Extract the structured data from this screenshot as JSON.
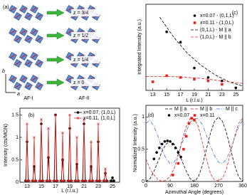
{
  "diagram": {
    "panel_label": "(a)",
    "layers": [
      "z = 3/4",
      "z = 1/2",
      "z = 1/4",
      "z = 0"
    ],
    "columns": [
      "AF-I",
      "AF-II"
    ],
    "axes": [
      "b",
      "a"
    ]
  },
  "chart_data": [
    {
      "type": "line",
      "panel_label": "(b)",
      "xlabel": "L (r.l.u.)",
      "ylabel": "Intensity (cts/MON)",
      "xlim": [
        12,
        26
      ],
      "xticks": [
        13,
        15,
        17,
        19,
        21,
        23,
        25
      ],
      "ylim": [
        0,
        1.65
      ],
      "yticks": [
        0,
        0.5,
        1,
        1.5
      ],
      "series": [
        {
          "name": "x=0.07, (1,0,L)",
          "color": "#000000",
          "style": "solid",
          "marker": "circle",
          "x": [
            12.8,
            13,
            13.2,
            13.8,
            14,
            14.2,
            14.8,
            15,
            15.2,
            15.8,
            16,
            16.2,
            16.8,
            17,
            17.2,
            17.8,
            18,
            18.2,
            18.8,
            19,
            19.2,
            19.8,
            20,
            20.2,
            20.8,
            21,
            21.2,
            21.8,
            22,
            22.2,
            22.8,
            23,
            23.2,
            23.8,
            24,
            24.2,
            24.8,
            25,
            25.2
          ],
          "values": [
            0.03,
            0.9,
            0.03,
            0.03,
            0.35,
            0.03,
            0.03,
            1.3,
            0.03,
            0.03,
            0.55,
            0.03,
            0.03,
            1.5,
            0.03,
            0.03,
            0.5,
            0.03,
            0.03,
            1.2,
            0.03,
            0.03,
            0.4,
            0.03,
            0.03,
            1.3,
            0.03,
            0.03,
            0.35,
            0.03,
            0.03,
            0.9,
            0.03,
            0.03,
            0.2,
            0.03,
            0.03,
            0.1,
            0.03
          ]
        },
        {
          "name": "x=0.11, (1,0,L)",
          "color": "#e8231f",
          "style": "solid",
          "marker": "x",
          "x": [
            12.85,
            13,
            13.15,
            13.85,
            14,
            14.15,
            14.85,
            15,
            15.15,
            15.85,
            16,
            16.15,
            16.85,
            17,
            17.15,
            17.85,
            18,
            18.15,
            18.85,
            19,
            19.15,
            19.85,
            20,
            20.15,
            20.85,
            21,
            21.15,
            21.85,
            22,
            22.15,
            22.85,
            23,
            23.15,
            23.85,
            24,
            24.15
          ],
          "values": [
            0.03,
            1.3,
            0.03,
            0.03,
            1.0,
            0.03,
            0.03,
            1.4,
            0.03,
            0.03,
            1.2,
            0.03,
            0.03,
            1.5,
            0.03,
            0.03,
            1.1,
            0.03,
            0.03,
            1.5,
            0.03,
            0.03,
            1.0,
            0.03,
            0.03,
            1.4,
            0.03,
            0.03,
            0.9,
            0.03,
            0.03,
            1.3,
            0.03,
            0.03,
            0.3,
            0.03
          ]
        }
      ]
    },
    {
      "type": "scatter",
      "panel_label": "(c)",
      "xlabel": "L (r.l.u.)",
      "ylabel": "Integrated Intensity (a.u.)",
      "xlim": [
        12,
        26
      ],
      "xticks": [
        13,
        15,
        17,
        19,
        21,
        23,
        25
      ],
      "ylim": [
        0,
        1
      ],
      "series": [
        {
          "name": "x=0.07 - (0,1,L)",
          "color": "#000000",
          "style": "none",
          "marker": "circle",
          "x": [
            15,
            17,
            19,
            21,
            23,
            25
          ],
          "values": [
            0.68,
            0.56,
            0.26,
            0.15,
            0.11,
            0.03
          ]
        },
        {
          "name": "x=0.11 - (1,0,L)",
          "color": "#e8231f",
          "style": "none",
          "marker": "square",
          "x": [
            13,
            15,
            17,
            19,
            21,
            23
          ],
          "values": [
            0.1,
            0.17,
            0.15,
            0.13,
            0.11,
            0.07
          ]
        },
        {
          "name": "(0,1,L) - M || a",
          "color": "#000000",
          "style": "dashed",
          "marker": "none",
          "x": [
            14,
            16,
            18,
            20,
            22,
            24,
            26
          ],
          "values": [
            0.85,
            0.62,
            0.43,
            0.29,
            0.18,
            0.1,
            0.05
          ]
        },
        {
          "name": "(1,0,L) - M || b",
          "color": "#e8231f",
          "style": "dashed",
          "marker": "none",
          "x": [
            12,
            14,
            16,
            18,
            20,
            22,
            24,
            26
          ],
          "values": [
            0.16,
            0.16,
            0.16,
            0.15,
            0.14,
            0.12,
            0.1,
            0.08
          ]
        }
      ]
    },
    {
      "type": "scatter",
      "panel_label": "(d)",
      "xlabel": "Azimuthal Angle (degrees)",
      "ylabel": "Normalized Intensity (a.u.)",
      "xlim": [
        0,
        360
      ],
      "xticks": [
        0,
        90,
        180,
        270,
        360
      ],
      "ylim": [
        0,
        1.18
      ],
      "yticks": [
        0,
        0.5,
        1
      ],
      "series": [
        {
          "name": "M || a",
          "color": "#000000",
          "style": "dashed",
          "marker": "none",
          "x": [
            0,
            15,
            30,
            45,
            60,
            75,
            90,
            105,
            120,
            135,
            150,
            165,
            180,
            195,
            210,
            225,
            240,
            255,
            270,
            285,
            300,
            315,
            330,
            345,
            360
          ],
          "values": [
            0,
            0.04,
            0.16,
            0.31,
            0.47,
            0.58,
            0.62,
            0.58,
            0.47,
            0.31,
            0.16,
            0.04,
            0,
            0.07,
            0.25,
            0.5,
            0.75,
            0.93,
            1,
            0.93,
            0.75,
            0.5,
            0.25,
            0.07,
            0
          ]
        },
        {
          "name": "M || b",
          "color": "#e8231f",
          "style": "dashed",
          "marker": "none",
          "x": [
            0,
            15,
            30,
            45,
            60,
            75,
            90,
            105,
            120,
            135,
            150,
            165,
            180,
            195,
            210,
            225,
            240,
            255,
            270,
            285,
            300,
            315,
            330,
            345,
            360
          ],
          "values": [
            0.35,
            0.2,
            0.1,
            0.03,
            0,
            0.02,
            0.08,
            0.2,
            0.4,
            0.65,
            0.85,
            0.98,
            0.97,
            0.85,
            0.6,
            0.35,
            0.12,
            0.02,
            0.01,
            0.05,
            0.2,
            0.45,
            0.7,
            0.9,
            0.98
          ]
        },
        {
          "name": "M || c",
          "color": "#3b6fd6",
          "style": "dashdot",
          "marker": "none",
          "x": [
            0,
            15,
            30,
            45,
            60,
            75,
            90,
            105,
            120,
            135,
            150,
            165,
            180,
            195,
            210,
            225,
            240,
            255,
            270,
            285,
            300,
            315,
            330,
            345,
            360
          ],
          "values": [
            0.9,
            0.95,
            0.85,
            0.7,
            0.5,
            0.35,
            0.28,
            0.3,
            0.42,
            0.6,
            0.78,
            0.92,
            0.98,
            0.97,
            0.88,
            0.72,
            0.55,
            0.4,
            0.3,
            0.28,
            0.35,
            0.5,
            0.68,
            0.85,
            0.95
          ]
        },
        {
          "name": "x=0.07",
          "color": "#000000",
          "style": "none",
          "marker": "circle",
          "x": [
            30,
            40,
            50,
            60,
            70,
            80,
            90,
            100,
            110,
            120,
            130
          ],
          "values": [
            0.35,
            0.45,
            0.52,
            0.58,
            0.62,
            0.63,
            0.62,
            0.58,
            0.52,
            0.45,
            0.38
          ]
        },
        {
          "name": "x=0.11",
          "color": "#e8231f",
          "style": "none",
          "marker": "square",
          "x": [
            100,
            120,
            140,
            150,
            160,
            170,
            180
          ],
          "values": [
            0.1,
            0.28,
            0.5,
            0.7,
            0.9,
            0.98,
            0.95
          ]
        }
      ]
    }
  ]
}
